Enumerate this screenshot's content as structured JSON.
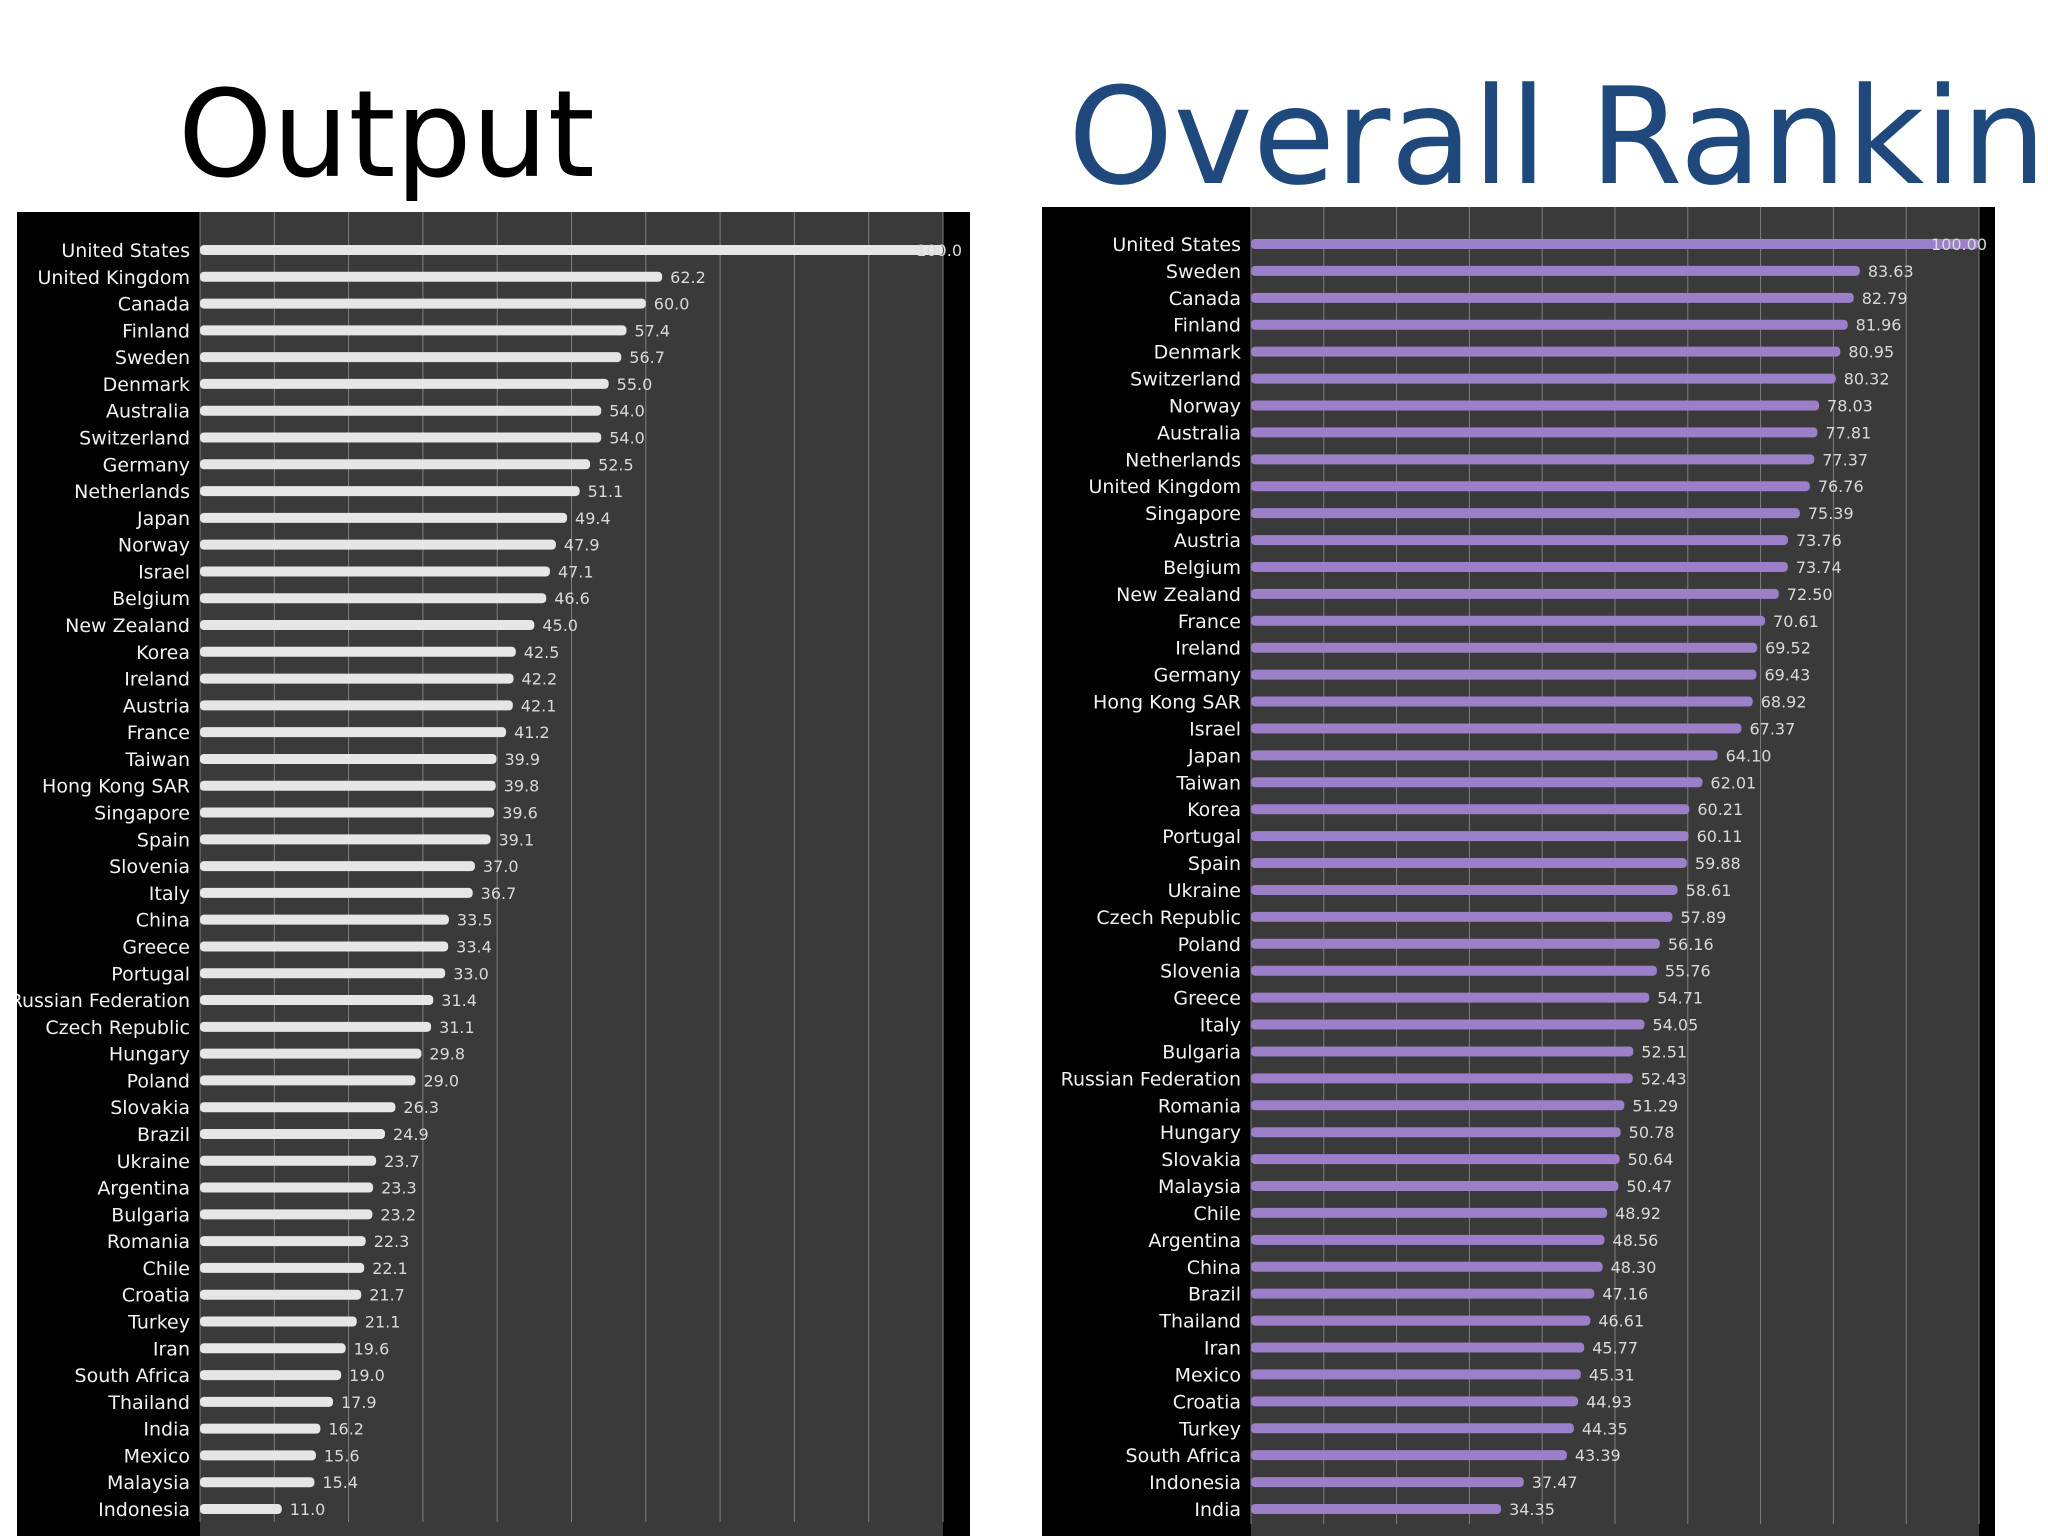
{
  "titles": {
    "left": "Output",
    "right": "Overall Ranking"
  },
  "colors": {
    "left_bar": "#e6e6e6",
    "right_bar": "#9b7fc8",
    "plot_bg": "#3a3a3a",
    "title_right": "#1f497d"
  },
  "chart_data": [
    {
      "type": "bar",
      "orientation": "horizontal",
      "title": "Output",
      "xlim": [
        0,
        100
      ],
      "xticks": [
        "0.0",
        "10.0",
        "20.0",
        "30.0",
        "40.0",
        "50.0",
        "60.0",
        "70.0",
        "80.0",
        "90.0",
        "100.0"
      ],
      "grid": true,
      "categories": [
        "United States",
        "United Kingdom",
        "Canada",
        "Finland",
        "Sweden",
        "Denmark",
        "Australia",
        "Switzerland",
        "Germany",
        "Netherlands",
        "Japan",
        "Norway",
        "Israel",
        "Belgium",
        "New Zealand",
        "Korea",
        "Ireland",
        "Austria",
        "France",
        "Taiwan",
        "Hong Kong SAR",
        "Singapore",
        "Spain",
        "Slovenia",
        "Italy",
        "China",
        "Greece",
        "Portugal",
        "Russian Federation",
        "Czech Republic",
        "Hungary",
        "Poland",
        "Slovakia",
        "Brazil",
        "Ukraine",
        "Argentina",
        "Bulgaria",
        "Romania",
        "Chile",
        "Croatia",
        "Turkey",
        "Iran",
        "South Africa",
        "Thailand",
        "India",
        "Mexico",
        "Malaysia",
        "Indonesia"
      ],
      "values": [
        100.0,
        62.2,
        60.0,
        57.4,
        56.7,
        55.0,
        54.0,
        54.0,
        52.5,
        51.1,
        49.4,
        47.9,
        47.1,
        46.6,
        45.0,
        42.5,
        42.2,
        42.1,
        41.2,
        39.9,
        39.8,
        39.6,
        39.1,
        37.0,
        36.7,
        33.5,
        33.4,
        33.0,
        31.4,
        31.1,
        29.8,
        29.0,
        26.3,
        24.9,
        23.7,
        23.3,
        23.2,
        22.3,
        22.1,
        21.7,
        21.1,
        19.6,
        19.0,
        17.9,
        16.2,
        15.6,
        15.4,
        11.0
      ],
      "labels": [
        "100.0",
        "62.2",
        "60.0",
        "57.4",
        "56.7",
        "55.0",
        "54.0",
        "54.0",
        "52.5",
        "51.1",
        "49.4",
        "47.9",
        "47.1",
        "46.6",
        "45.0",
        "42.5",
        "42.2",
        "42.1",
        "41.2",
        "39.9",
        "39.8",
        "39.6",
        "39.1",
        "37.0",
        "36.7",
        "33.5",
        "33.4",
        "33.0",
        "31.4",
        "31.1",
        "29.8",
        "29.0",
        "26.3",
        "24.9",
        "23.7",
        "23.3",
        "23.2",
        "22.3",
        "22.1",
        "21.7",
        "21.1",
        "19.6",
        "19.0",
        "17.9",
        "16.2",
        "15.6",
        "15.4",
        "11.0"
      ]
    },
    {
      "type": "bar",
      "orientation": "horizontal",
      "title": "Overall Ranking",
      "xlim": [
        0,
        100
      ],
      "xticks": [
        "0.00",
        "10.00",
        "20.00",
        "30.00",
        "40.00",
        "50.00",
        "60.00",
        "70.00",
        "80.00",
        "90.00",
        "100.00"
      ],
      "grid": true,
      "categories": [
        "United States",
        "Sweden",
        "Canada",
        "Finland",
        "Denmark",
        "Switzerland",
        "Norway",
        "Australia",
        "Netherlands",
        "United Kingdom",
        "Singapore",
        "Austria",
        "Belgium",
        "New Zealand",
        "France",
        "Ireland",
        "Germany",
        "Hong Kong SAR",
        "Israel",
        "Japan",
        "Taiwan",
        "Korea",
        "Portugal",
        "Spain",
        "Ukraine",
        "Czech Republic",
        "Poland",
        "Slovenia",
        "Greece",
        "Italy",
        "Bulgaria",
        "Russian Federation",
        "Romania",
        "Hungary",
        "Slovakia",
        "Malaysia",
        "Chile",
        "Argentina",
        "China",
        "Brazil",
        "Thailand",
        "Iran",
        "Mexico",
        "Croatia",
        "Turkey",
        "South Africa",
        "Indonesia",
        "India"
      ],
      "values": [
        100.0,
        83.63,
        82.79,
        81.96,
        80.95,
        80.32,
        78.03,
        77.81,
        77.37,
        76.76,
        75.39,
        73.76,
        73.74,
        72.5,
        70.61,
        69.52,
        69.43,
        68.92,
        67.37,
        64.1,
        62.01,
        60.21,
        60.11,
        59.88,
        58.61,
        57.89,
        56.16,
        55.76,
        54.71,
        54.05,
        52.51,
        52.43,
        51.29,
        50.78,
        50.64,
        50.47,
        48.92,
        48.56,
        48.3,
        47.16,
        46.61,
        45.77,
        45.31,
        44.93,
        44.35,
        43.39,
        37.47,
        34.35
      ],
      "labels": [
        "100.00",
        "83.63",
        "82.79",
        "81.96",
        "80.95",
        "80.32",
        "78.03",
        "77.81",
        "77.37",
        "76.76",
        "75.39",
        "73.76",
        "73.74",
        "72.50",
        "70.61",
        "69.52",
        "69.43",
        "68.92",
        "67.37",
        "64.10",
        "62.01",
        "60.21",
        "60.11",
        "59.88",
        "58.61",
        "57.89",
        "56.16",
        "55.76",
        "54.71",
        "54.05",
        "52.51",
        "52.43",
        "51.29",
        "50.78",
        "50.64",
        "50.47",
        "48.92",
        "48.56",
        "48.30",
        "47.16",
        "46.61",
        "45.77",
        "45.31",
        "44.93",
        "44.35",
        "43.39",
        "37.47",
        "34.35"
      ]
    }
  ]
}
